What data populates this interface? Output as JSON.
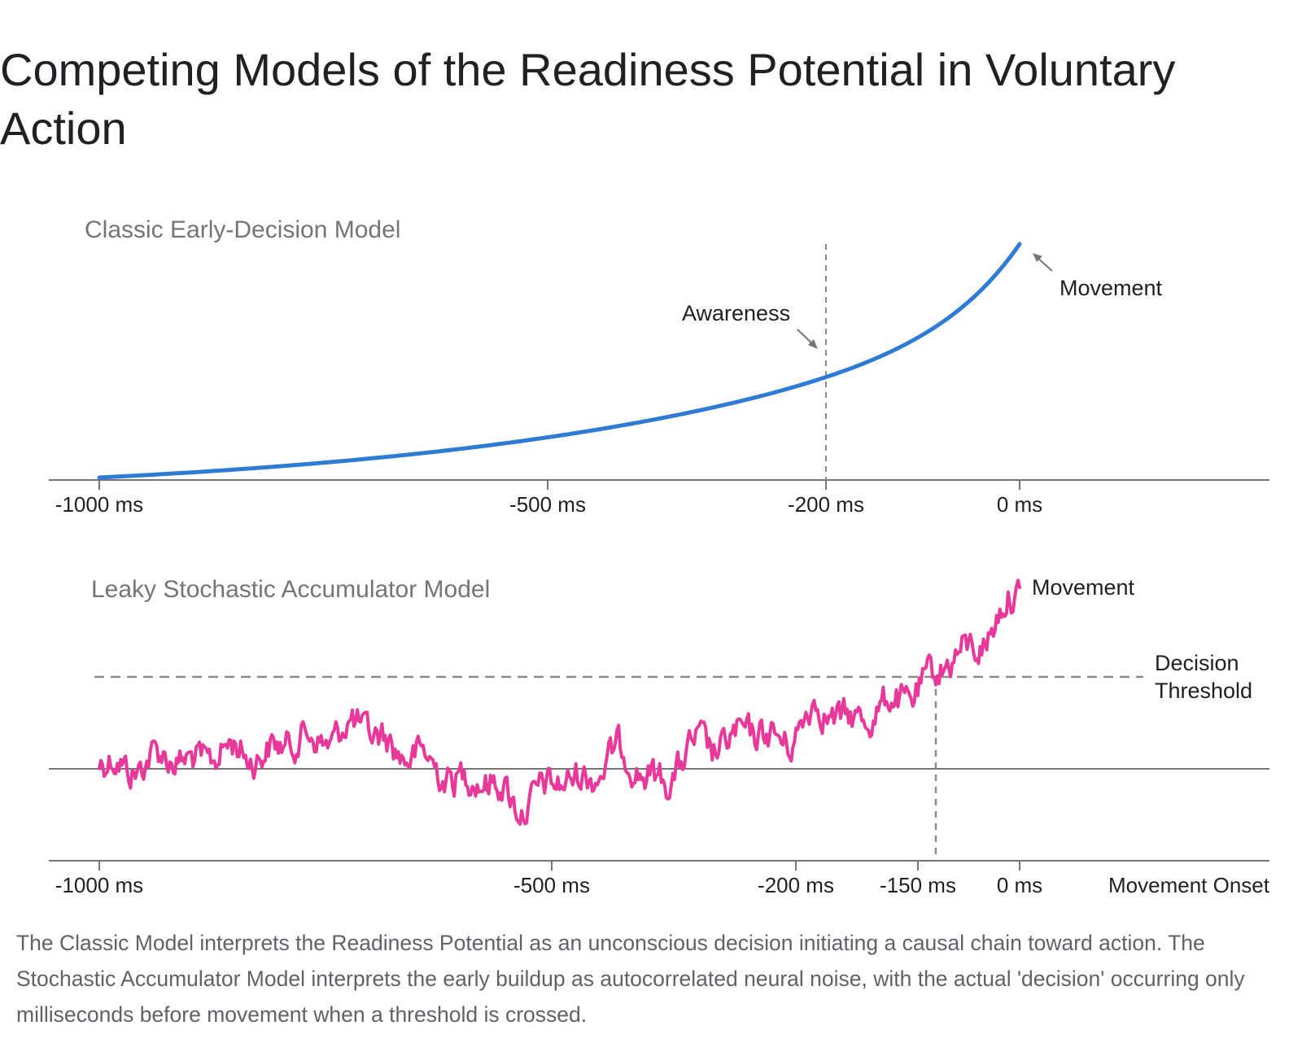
{
  "title": "Competing Models of the Readiness Potential in Voluntary Action",
  "caption": "The Classic Model interprets the Readiness Potential as an unconscious decision initiating a causal chain toward action. The Stochastic Accumulator Model interprets the early buildup as autocorrelated neural noise, with the actual 'decision' occurring only milliseconds before movement when a threshold is crossed.",
  "colors": {
    "classic_line": "#2e7bd6",
    "accumulator_line": "#e8399a",
    "axis": "#757575",
    "guide": "#8a8a8a"
  },
  "panels": [
    {
      "title": "Classic Early-Decision Model",
      "ticks": [
        {
          "value": -1000,
          "label": "-1000 ms"
        },
        {
          "value": -500,
          "label": "-500 ms"
        },
        {
          "value": -200,
          "label": "-200 ms"
        },
        {
          "value": 0,
          "label": "0 ms"
        }
      ],
      "annotations": {
        "awareness": {
          "label": "Awareness",
          "time": -200
        },
        "movement": {
          "label": "Movement",
          "time": 0
        }
      }
    },
    {
      "title": "Leaky Stochastic Accumulator Model",
      "ticks": [
        {
          "value": -1000,
          "label": "-1000 ms"
        },
        {
          "value": -500,
          "label": "-500 ms"
        },
        {
          "value": -200,
          "label": "-200 ms"
        },
        {
          "value": -150,
          "label": "-150 ms"
        },
        {
          "value": 0,
          "label": "0 ms"
        }
      ],
      "axis_end_label": "Movement Onset",
      "annotations": {
        "threshold": {
          "label_line1": "Decision",
          "label_line2": "Threshold"
        },
        "movement": {
          "label": "Movement"
        },
        "crossing_time": -145
      }
    }
  ]
}
